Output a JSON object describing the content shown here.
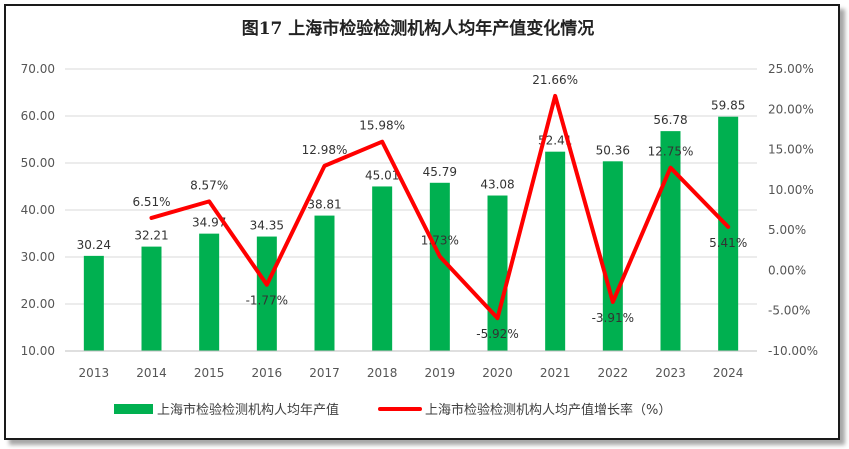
{
  "chart_data": {
    "type": "bar+line",
    "title": "图17 上海市检验检测机构人均年产值变化情况",
    "categories": [
      "2013",
      "2014",
      "2015",
      "2016",
      "2017",
      "2018",
      "2019",
      "2020",
      "2021",
      "2022",
      "2023",
      "2024"
    ],
    "series": [
      {
        "name": "上海市检验检测机构人均年产值",
        "type": "bar",
        "axis": "left",
        "color": "#00B050",
        "values": [
          30.24,
          32.21,
          34.97,
          34.35,
          38.81,
          45.01,
          45.79,
          43.08,
          52.41,
          50.36,
          56.78,
          59.85
        ],
        "labels": [
          "30.24",
          "32.21",
          "34.97",
          "34.35",
          "38.81",
          "45.01",
          "45.79",
          "43.08",
          "52.41",
          "50.36",
          "56.78",
          "59.85"
        ]
      },
      {
        "name": "上海市检验检测机构人均产值增长率（%）",
        "type": "line",
        "axis": "right",
        "color": "#FF0000",
        "values": [
          null,
          6.51,
          8.57,
          -1.77,
          12.98,
          15.98,
          1.73,
          -5.92,
          21.66,
          -3.91,
          12.75,
          5.41
        ],
        "labels": [
          "",
          "6.51%",
          "8.57%",
          "-1.77%",
          "12.98%",
          "15.98%",
          "1.73%",
          "-5.92%",
          "21.66%",
          "-3.91%",
          "12.75%",
          "5.41%"
        ]
      }
    ],
    "y_left": {
      "min": 10,
      "max": 70,
      "ticks": [
        "10.00",
        "20.00",
        "30.00",
        "40.00",
        "50.00",
        "60.00",
        "70.00"
      ]
    },
    "y_right": {
      "min": -10,
      "max": 25,
      "ticks": [
        "-10.00%",
        "-5.00%",
        "0.00%",
        "5.00%",
        "10.00%",
        "15.00%",
        "20.00%",
        "25.00%"
      ]
    },
    "grid": true,
    "legend_position": "bottom"
  }
}
